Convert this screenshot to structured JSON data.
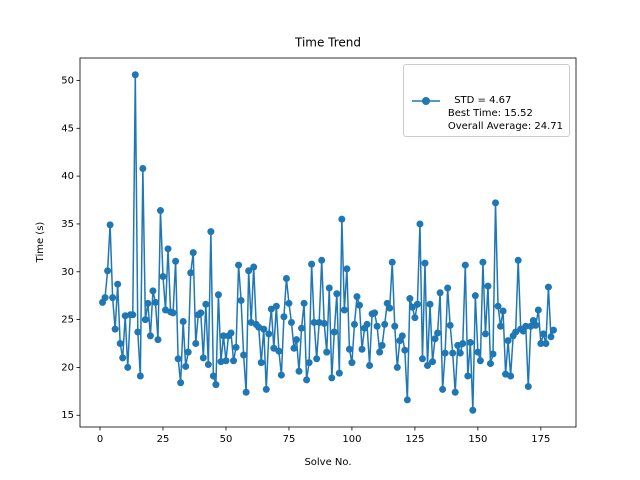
{
  "chart_data": {
    "type": "line",
    "title": "Time Trend",
    "x_label": "Solve No.",
    "y_label": "Time (s)",
    "x": [
      1,
      2,
      3,
      4,
      5,
      6,
      7,
      8,
      9,
      10,
      11,
      12,
      13,
      14,
      15,
      16,
      17,
      18,
      19,
      20,
      21,
      22,
      23,
      24,
      25,
      26,
      27,
      28,
      29,
      30,
      31,
      32,
      33,
      34,
      35,
      36,
      37,
      38,
      39,
      40,
      41,
      42,
      43,
      44,
      45,
      46,
      47,
      48,
      49,
      50,
      51,
      52,
      53,
      54,
      55,
      56,
      57,
      58,
      59,
      60,
      61,
      62,
      63,
      64,
      65,
      66,
      67,
      68,
      69,
      70,
      71,
      72,
      73,
      74,
      75,
      76,
      77,
      78,
      79,
      80,
      81,
      82,
      83,
      84,
      85,
      86,
      87,
      88,
      89,
      90,
      91,
      92,
      93,
      94,
      95,
      96,
      97,
      98,
      99,
      100,
      101,
      102,
      103,
      104,
      105,
      106,
      107,
      108,
      109,
      110,
      111,
      112,
      113,
      114,
      115,
      116,
      117,
      118,
      119,
      120,
      121,
      122,
      123,
      124,
      125,
      126,
      127,
      128,
      129,
      130,
      131,
      132,
      133,
      134,
      135,
      136,
      137,
      138,
      139,
      140,
      141,
      142,
      143,
      144,
      145,
      146,
      147,
      148,
      149,
      150,
      151,
      152,
      153,
      154,
      155,
      156,
      157,
      158,
      159,
      160,
      161,
      162,
      163,
      164,
      165,
      166,
      167,
      168,
      169,
      170,
      171,
      172,
      173,
      174,
      175,
      176,
      177,
      178,
      179,
      180
    ],
    "series": [
      {
        "name": "STD = 4.67\nBest Time: 15.52\nOverall Average: 24.71",
        "color": "#1f77b4",
        "values": [
          26.8,
          27.3,
          30.1,
          34.9,
          27.3,
          24.0,
          28.7,
          22.5,
          21.0,
          25.4,
          20.0,
          25.5,
          25.5,
          50.6,
          23.7,
          19.1,
          40.8,
          25.0,
          26.7,
          23.3,
          28.0,
          26.8,
          22.9,
          36.4,
          29.5,
          26.0,
          32.4,
          25.8,
          25.7,
          31.1,
          20.9,
          18.4,
          24.8,
          20.1,
          21.6,
          29.9,
          32.0,
          22.5,
          25.5,
          25.7,
          21.0,
          26.6,
          20.3,
          34.2,
          19.1,
          18.2,
          27.6,
          20.6,
          23.3,
          20.7,
          23.3,
          23.6,
          20.7,
          22.1,
          30.7,
          27.0,
          21.3,
          17.4,
          30.1,
          24.7,
          30.5,
          24.5,
          24.2,
          20.5,
          24.0,
          17.7,
          23.5,
          26.1,
          22.0,
          26.4,
          21.7,
          19.2,
          25.3,
          29.3,
          26.7,
          24.7,
          22.0,
          22.9,
          19.6,
          24.1,
          26.7,
          18.7,
          20.5,
          30.8,
          24.7,
          20.9,
          24.7,
          31.2,
          24.6,
          21.6,
          28.3,
          18.9,
          23.7,
          27.7,
          19.4,
          35.5,
          26.0,
          30.3,
          21.9,
          20.5,
          24.5,
          27.4,
          26.5,
          21.9,
          24.1,
          24.5,
          20.2,
          25.6,
          25.7,
          24.3,
          21.6,
          22.3,
          24.5,
          26.7,
          26.2,
          31.0,
          24.3,
          20.0,
          22.8,
          23.3,
          21.8,
          16.6,
          27.2,
          26.3,
          25.2,
          26.6,
          35.0,
          20.9,
          30.9,
          20.2,
          26.6,
          20.6,
          23.0,
          23.6,
          27.8,
          17.7,
          21.5,
          28.3,
          24.4,
          21.5,
          17.4,
          22.3,
          21.5,
          22.5,
          30.7,
          19.1,
          22.6,
          15.52,
          27.5,
          21.6,
          20.7,
          31.0,
          23.5,
          28.5,
          20.4,
          21.4,
          37.2,
          26.4,
          24.3,
          25.9,
          19.3,
          22.8,
          19.1,
          23.3,
          23.7,
          31.2,
          24.0,
          23.8,
          24.3,
          18.0,
          24.3,
          24.9,
          24.4,
          26.0,
          22.5,
          23.5,
          22.5,
          28.4,
          23.2,
          23.9
        ]
      }
    ],
    "xlim": [
      -7.95,
      188.95
    ],
    "xticks": [
      0,
      25,
      50,
      75,
      100,
      125,
      150,
      175
    ],
    "ylim": [
      13.77,
      52.35
    ],
    "yticks": [
      15,
      20,
      25,
      30,
      35,
      40,
      45,
      50
    ],
    "grid": false,
    "legend": "upper right"
  }
}
